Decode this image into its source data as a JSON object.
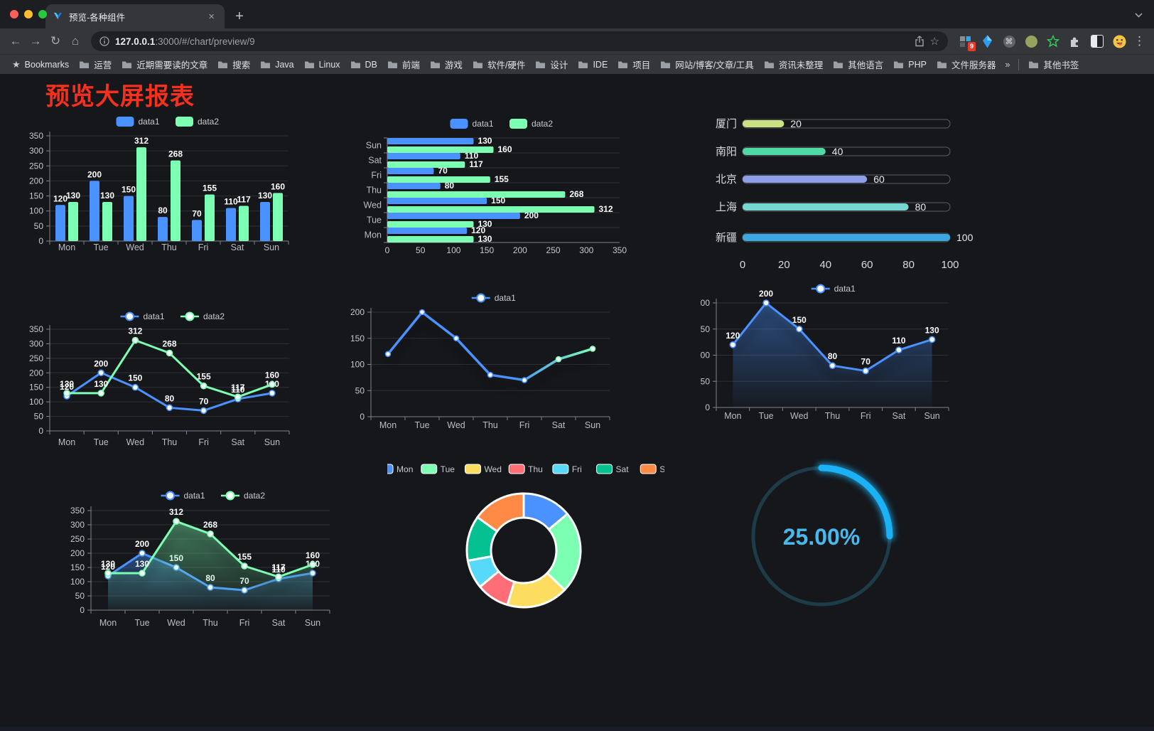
{
  "browser": {
    "tab_title": "预览-各种组件",
    "new_tab_label": "+",
    "tab_close_label": "×",
    "back_icon": "←",
    "forward_icon": "→",
    "reload_icon": "↻",
    "home_icon": "⌂",
    "url_host": "127.0.0.1",
    "url_rest": ":3000/#/chart/preview/9",
    "star_icon": "☆",
    "extension_badge": "9",
    "command_glyph": "⌘",
    "menu_icon": "⋮",
    "bookmarks_label": "Bookmarks",
    "bookmark_items": [
      "运营",
      "近期需要读的文章",
      "搜索",
      "Java",
      "Linux",
      "DB",
      "前端",
      "游戏",
      "软件/硬件",
      "设计",
      "IDE",
      "项目",
      "网站/博客/文章/工具",
      "资讯未整理",
      "其他语言",
      "PHP",
      "文件服务器"
    ],
    "bookmarks_overflow": "»",
    "other_bookmarks": "其他书签"
  },
  "page": {
    "title": "预览大屏报表"
  },
  "chart_data": [
    {
      "type": "bar",
      "categories": [
        "Mon",
        "Tue",
        "Wed",
        "Thu",
        "Fri",
        "Sat",
        "Sun"
      ],
      "series": [
        {
          "name": "data1",
          "color": "#4992ff",
          "values": [
            120,
            200,
            150,
            80,
            70,
            110,
            130
          ]
        },
        {
          "name": "data2",
          "color": "#7cffb2",
          "values": [
            130,
            130,
            312,
            268,
            155,
            117,
            160
          ]
        }
      ],
      "ylim": [
        0,
        350
      ],
      "ystep": 50,
      "labels": true,
      "legend_position": "top",
      "grid": true
    },
    {
      "type": "hbar",
      "categories": [
        "Mon",
        "Tue",
        "Wed",
        "Thu",
        "Fri",
        "Sat",
        "Sun"
      ],
      "series": [
        {
          "name": "data1",
          "color": "#4992ff",
          "values": [
            120,
            200,
            150,
            80,
            70,
            110,
            130
          ]
        },
        {
          "name": "data2",
          "color": "#7cffb2",
          "values": [
            130,
            130,
            312,
            268,
            155,
            117,
            160
          ]
        }
      ],
      "xlim": [
        0,
        350
      ],
      "xstep": 50,
      "labels": true,
      "legend_position": "top",
      "grid": true
    },
    {
      "type": "progress",
      "categories": [
        "厦门",
        "南阳",
        "北京",
        "上海",
        "新疆"
      ],
      "values": [
        20,
        40,
        60,
        80,
        100
      ],
      "colors": [
        "#cbe183",
        "#4fd9a4",
        "#8f9ee8",
        "#74d7d2",
        "#3ba7e0"
      ],
      "xlim": [
        0,
        100
      ],
      "xticks": [
        0,
        20,
        40,
        60,
        80,
        100
      ]
    },
    {
      "type": "line",
      "categories": [
        "Mon",
        "Tue",
        "Wed",
        "Thu",
        "Fri",
        "Sat",
        "Sun"
      ],
      "series": [
        {
          "name": "data1",
          "color": "#4992ff",
          "values": [
            120,
            200,
            150,
            80,
            70,
            110,
            130
          ]
        },
        {
          "name": "data2",
          "color": "#7cffb2",
          "values": [
            130,
            130,
            312,
            268,
            155,
            117,
            160
          ]
        }
      ],
      "ylim": [
        0,
        350
      ],
      "ystep": 50,
      "labels": true,
      "legend_position": "top",
      "grid": true
    },
    {
      "type": "gradient-line",
      "categories": [
        "Mon",
        "Tue",
        "Wed",
        "Thu",
        "Fri",
        "Sat",
        "Sun"
      ],
      "series": [
        {
          "name": "data1",
          "gradient": [
            "#4992ff",
            "#7cffb2"
          ],
          "values": [
            120,
            200,
            150,
            80,
            70,
            110,
            130
          ]
        }
      ],
      "ylim": [
        0,
        200
      ],
      "ystep": 50,
      "labels": false,
      "legend_position": "top",
      "grid": true
    },
    {
      "type": "area-line",
      "categories": [
        "Mon",
        "Tue",
        "Wed",
        "Thu",
        "Fri",
        "Sat",
        "Sun"
      ],
      "series": [
        {
          "name": "data1",
          "color": "#4992ff",
          "values": [
            120,
            200,
            150,
            80,
            70,
            110,
            130
          ]
        }
      ],
      "ylim": [
        0,
        200
      ],
      "ystep": 50,
      "labels": true,
      "legend_position": "top",
      "grid": true
    },
    {
      "type": "area-line",
      "categories": [
        "Mon",
        "Tue",
        "Wed",
        "Thu",
        "Fri",
        "Sat",
        "Sun"
      ],
      "series": [
        {
          "name": "data1",
          "color": "#4992ff",
          "values": [
            120,
            200,
            150,
            80,
            70,
            110,
            130
          ]
        },
        {
          "name": "data2",
          "color": "#7cffb2",
          "values": [
            130,
            130,
            312,
            268,
            155,
            117,
            160
          ]
        }
      ],
      "ylim": [
        0,
        350
      ],
      "ystep": 50,
      "labels": true,
      "legend_position": "top",
      "grid": true
    },
    {
      "type": "donut",
      "categories": [
        "Mon",
        "Tue",
        "Wed",
        "Thu",
        "Fri",
        "Sat",
        "Sun"
      ],
      "values": [
        120,
        200,
        150,
        80,
        70,
        110,
        130
      ],
      "colors": [
        "#4992ff",
        "#7cffb2",
        "#fddd60",
        "#ff6e76",
        "#58d9f9",
        "#05c091",
        "#ff8a45"
      ],
      "legend_position": "top"
    },
    {
      "type": "gauge",
      "value": 25,
      "label": "25.00%",
      "progress_color": "#1bb1f5",
      "track_color": "#1d3c48",
      "text_color": "#49b8ed"
    }
  ]
}
